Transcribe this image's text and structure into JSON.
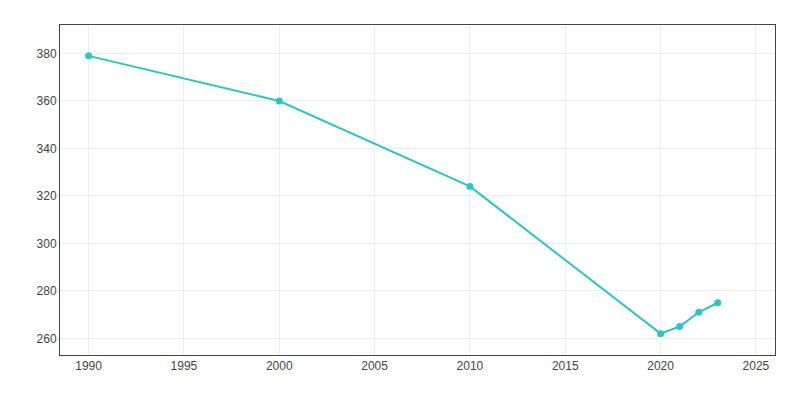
{
  "chart_data": {
    "type": "line",
    "x": [
      1990,
      2000,
      2010,
      2020,
      2021,
      2022,
      2023
    ],
    "values": [
      379,
      360,
      324,
      262,
      265,
      271,
      275
    ],
    "color": "#2ec4c4",
    "marker": "circle",
    "line_style": "solid",
    "xlim": [
      1988.5,
      2026
    ],
    "ylim": [
      253,
      392
    ],
    "xticks": [
      1990,
      1995,
      2000,
      2005,
      2010,
      2015,
      2020,
      2025
    ],
    "yticks": [
      260,
      280,
      300,
      320,
      340,
      360,
      380
    ],
    "grid": true
  }
}
